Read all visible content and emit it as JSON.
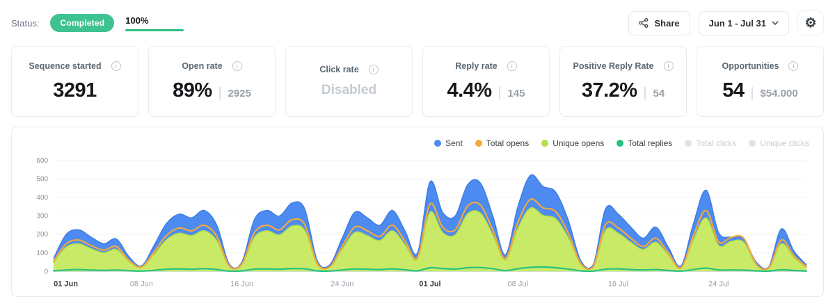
{
  "topbar": {
    "status_label": "Status:",
    "status_badge": "Completed",
    "progress_label": "100%",
    "progress_percent": 100,
    "share_label": "Share",
    "date_range": "Jun 1 - Jul 31"
  },
  "colors": {
    "badge_green": "#3ec28f",
    "progress_green": "#2ebd85",
    "sent_blue": "#4d8bf0",
    "opens_orange": "#f3a83c",
    "unique_opens_green": "#c9ea67",
    "replies_green": "#27c281",
    "disabled_gray": "#dfe3e9"
  },
  "stats": {
    "cards": [
      {
        "title": "Sequence started",
        "value": "3291"
      },
      {
        "title": "Open rate",
        "value": "89%",
        "sep": "|",
        "secondary": "2925"
      },
      {
        "title": "Click rate",
        "value": "Disabled"
      },
      {
        "title": "Reply rate",
        "value": "4.4%",
        "sep": "|",
        "secondary": "145"
      },
      {
        "title": "Positive Reply Rate",
        "value": "37.2%",
        "sep": "|",
        "secondary": "54"
      },
      {
        "title": "Opportunities",
        "value": "54",
        "sep": "|",
        "secondary": "$54.000"
      }
    ]
  },
  "chart": {
    "legend": [
      {
        "label": "Sent",
        "color": "#4d8bf0",
        "enabled": true
      },
      {
        "label": "Total opens",
        "color": "#f3a83c",
        "enabled": true
      },
      {
        "label": "Unique opens",
        "color": "#b5e04b",
        "enabled": true
      },
      {
        "label": "Total replies",
        "color": "#27c281",
        "enabled": true
      },
      {
        "label": "Total clicks",
        "color": "#dfe3e9",
        "enabled": false
      },
      {
        "label": "Unique clicks",
        "color": "#dfe3e9",
        "enabled": false
      }
    ]
  },
  "chart_data": {
    "type": "area",
    "x_range": "Jun 1 - Jul 31",
    "ylim": [
      0,
      600
    ],
    "yticks": [
      0,
      100,
      200,
      300,
      400,
      500,
      600
    ],
    "xticks": [
      {
        "i": 0,
        "label": "01 Jun",
        "bold": true
      },
      {
        "i": 7,
        "label": "08 Jun",
        "bold": false
      },
      {
        "i": 15,
        "label": "16 Jun",
        "bold": false
      },
      {
        "i": 23,
        "label": "24 Jun",
        "bold": false
      },
      {
        "i": 30,
        "label": "01 Jul",
        "bold": true
      },
      {
        "i": 37,
        "label": "08 Jul",
        "bold": false
      },
      {
        "i": 45,
        "label": "16 Jul",
        "bold": false
      },
      {
        "i": 53,
        "label": "24 Jul",
        "bold": false
      }
    ],
    "series": [
      {
        "name": "Sent",
        "kind": "area",
        "color": "#3f7ee8",
        "fill": "#4d8bf0",
        "values": [
          70,
          200,
          225,
          185,
          150,
          175,
          80,
          30,
          140,
          260,
          310,
          290,
          330,
          250,
          40,
          50,
          280,
          330,
          300,
          370,
          340,
          60,
          35,
          180,
          320,
          290,
          250,
          330,
          220,
          100,
          485,
          320,
          300,
          470,
          480,
          300,
          90,
          350,
          520,
          460,
          430,
          280,
          60,
          35,
          340,
          310,
          240,
          180,
          240,
          130,
          30,
          260,
          440,
          210,
          185,
          175,
          50,
          25,
          230,
          110,
          35
        ]
      },
      {
        "name": "Unique opens",
        "kind": "area",
        "color": "#b3dc45",
        "fill": "#c9ea67",
        "values": [
          48,
          132,
          150,
          123,
          101,
          119,
          53,
          22,
          92,
          172,
          207,
          194,
          220,
          167,
          26,
          35,
          185,
          220,
          198,
          246,
          224,
          40,
          22,
          119,
          211,
          194,
          167,
          220,
          145,
          66,
          321,
          211,
          198,
          312,
          317,
          198,
          62,
          233,
          343,
          304,
          286,
          185,
          40,
          22,
          224,
          207,
          158,
          119,
          158,
          88,
          18,
          172,
          290,
          141,
          163,
          158,
          35,
          18,
          150,
          75,
          22
        ]
      },
      {
        "name": "Total opens",
        "kind": "line",
        "color": "#f3a83c",
        "values": [
          55,
          150,
          170,
          140,
          115,
          135,
          60,
          25,
          105,
          195,
          235,
          220,
          250,
          190,
          30,
          40,
          210,
          250,
          225,
          280,
          255,
          45,
          25,
          135,
          240,
          220,
          190,
          250,
          165,
          75,
          365,
          240,
          225,
          355,
          360,
          225,
          70,
          265,
          390,
          345,
          325,
          210,
          45,
          25,
          255,
          235,
          180,
          135,
          180,
          100,
          20,
          195,
          330,
          160,
          185,
          180,
          40,
          20,
          170,
          85,
          25
        ]
      },
      {
        "name": "Total replies",
        "kind": "line",
        "color": "#27c281",
        "values": [
          3,
          8,
          10,
          7,
          6,
          8,
          4,
          2,
          6,
          12,
          14,
          12,
          15,
          10,
          2,
          3,
          12,
          14,
          12,
          16,
          14,
          3,
          2,
          8,
          13,
          12,
          10,
          14,
          9,
          3,
          20,
          16,
          13,
          20,
          21,
          15,
          4,
          15,
          22,
          24,
          20,
          13,
          3,
          2,
          12,
          14,
          10,
          8,
          10,
          5,
          2,
          10,
          18,
          8,
          8,
          7,
          3,
          2,
          9,
          5,
          2
        ]
      }
    ]
  }
}
